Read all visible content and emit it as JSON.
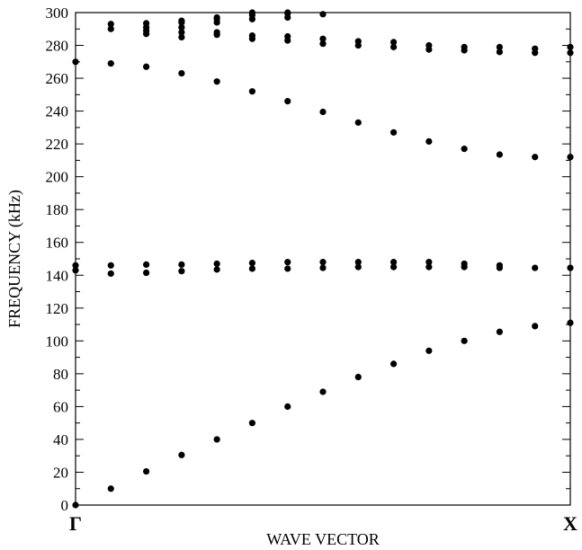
{
  "chart_data": {
    "type": "scatter",
    "title": "",
    "xlabel": "WAVE VECTOR",
    "ylabel": "FREQUENCY (kHz)",
    "x_tick_labels": [
      "Γ",
      "X"
    ],
    "x_range": [
      0,
      1
    ],
    "ylim": [
      0,
      300
    ],
    "y_ticks": [
      0,
      20,
      40,
      60,
      80,
      100,
      120,
      140,
      160,
      180,
      200,
      220,
      240,
      260,
      280,
      300
    ],
    "grid": false,
    "x": [
      0,
      0.0714,
      0.1429,
      0.2143,
      0.2857,
      0.3571,
      0.4286,
      0.5,
      0.5714,
      0.6429,
      0.7143,
      0.7857,
      0.8571,
      0.9286,
      1.0
    ],
    "series": [
      {
        "values": [
          0,
          10,
          20.5,
          30.5,
          40,
          50,
          60,
          69,
          78,
          86,
          94,
          100,
          105.5,
          109,
          111
        ]
      },
      {
        "values": [
          143,
          141,
          141.5,
          142.5,
          143.5,
          144,
          144,
          144.5,
          145,
          145,
          145,
          145,
          144.5,
          144.5,
          144.5
        ]
      },
      {
        "values": [
          146,
          146,
          146.5,
          146.5,
          147,
          147.5,
          148,
          148,
          148,
          148,
          148,
          147,
          146,
          null,
          null
        ]
      },
      {
        "values": [
          270,
          269,
          267,
          263,
          258,
          252,
          246,
          239.5,
          233,
          227,
          221.5,
          217,
          213.5,
          212,
          212
        ]
      },
      {
        "values": [
          null,
          290,
          287,
          285,
          286.5,
          284,
          283,
          281,
          280,
          279,
          277.5,
          277,
          276,
          275.5,
          275.5
        ]
      },
      {
        "values": [
          null,
          293,
          289,
          288,
          288,
          286,
          285.5,
          284,
          282.5,
          282,
          280,
          279,
          279,
          278,
          279
        ]
      },
      {
        "values": [
          null,
          null,
          291,
          291,
          294,
          296,
          297,
          299,
          null,
          null,
          null,
          null,
          null,
          null,
          null
        ]
      },
      {
        "values": [
          null,
          null,
          293.5,
          294,
          296,
          298.5,
          299.5,
          null,
          null,
          null,
          null,
          null,
          null,
          null,
          null
        ]
      },
      {
        "values": [
          null,
          null,
          null,
          295,
          297,
          300,
          300,
          null,
          null,
          null,
          null,
          null,
          null,
          null,
          null
        ]
      }
    ]
  }
}
